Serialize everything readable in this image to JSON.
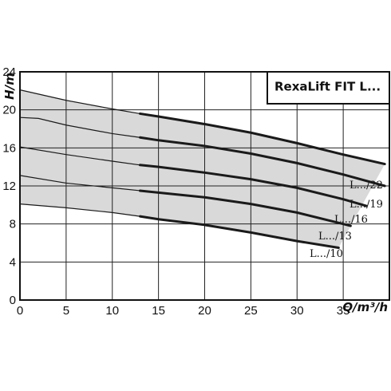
{
  "chart_data": {
    "type": "area",
    "title": "RexaLift FIT L...",
    "xlabel": "Q/m³/h",
    "ylabel": "H/m",
    "xlim": [
      0,
      40
    ],
    "ylim": [
      0,
      24
    ],
    "x_ticks": [
      0,
      5,
      10,
      15,
      20,
      25,
      30,
      35
    ],
    "y_ticks": [
      0,
      4,
      8,
      12,
      16,
      20,
      24
    ],
    "grid": true,
    "colors": {
      "band": "#d9d9d9",
      "curve": "#1a1a1a",
      "grid": "#222222"
    },
    "series": [
      {
        "name": "L.../22",
        "x": [
          0,
          5,
          10,
          13,
          15,
          20,
          25,
          30,
          35,
          39.5
        ],
        "y": [
          22.1,
          21.0,
          20.1,
          19.6,
          19.3,
          18.5,
          17.6,
          16.5,
          15.3,
          14.3
        ]
      },
      {
        "name": "L.../19",
        "x": [
          0,
          2,
          5,
          10,
          13,
          15,
          20,
          25,
          30,
          35,
          39.5
        ],
        "y": [
          19.2,
          19.1,
          18.4,
          17.5,
          17.1,
          16.8,
          16.2,
          15.4,
          14.4,
          13.2,
          12.0
        ]
      },
      {
        "name": "L.../16",
        "x": [
          0,
          5,
          10,
          13,
          15,
          20,
          25,
          30,
          35,
          37.5
        ],
        "y": [
          16.1,
          15.3,
          14.6,
          14.2,
          14.0,
          13.4,
          12.7,
          11.8,
          10.6,
          9.9
        ]
      },
      {
        "name": "L.../13",
        "x": [
          0,
          5,
          10,
          13,
          15,
          20,
          25,
          30,
          35,
          35.8
        ],
        "y": [
          13.1,
          12.3,
          11.8,
          11.5,
          11.3,
          10.8,
          10.1,
          9.2,
          8.0,
          7.8
        ]
      },
      {
        "name": "L.../10",
        "x": [
          0,
          5,
          10,
          13,
          15,
          20,
          25,
          30,
          34.5
        ],
        "y": [
          10.1,
          9.7,
          9.2,
          8.8,
          8.5,
          7.9,
          7.1,
          6.2,
          5.5
        ]
      }
    ]
  }
}
